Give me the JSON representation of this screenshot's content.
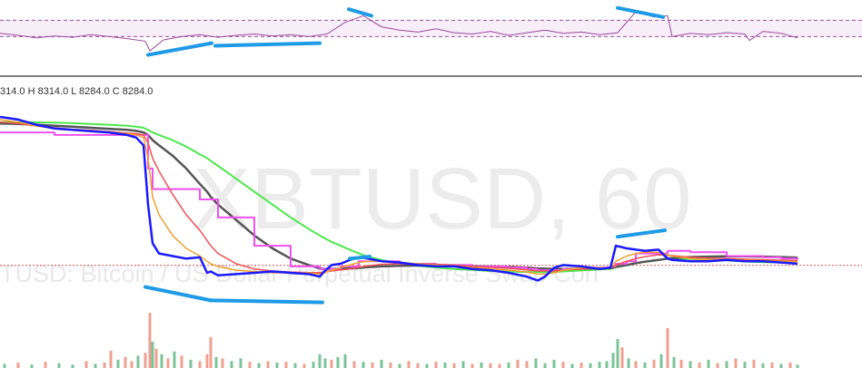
{
  "header": {
    "ohlc_text": "314.0 H 8314.0 L 8284.0 C 8284.0"
  },
  "watermark": {
    "symbol": "XBTUSD, 60",
    "description": "TUSD: Bitcoin / US Dollar Perpetual Inverse Swap Con"
  },
  "colors": {
    "price": "#1a1aff",
    "rsi": "#9c4a9c",
    "trendline": "#1e9ae6",
    "ma_fast": "#f0a030",
    "ma_red": "#f05050",
    "ma_pink": "#f050f0",
    "ma_dark": "#555555",
    "ma_green": "#4ce84c",
    "vol_up": "#7bc49a",
    "vol_down": "#f0a090",
    "separator": "#000000",
    "grid": "#e8e8e8"
  },
  "chart_data": [
    {
      "type": "line",
      "name": "rsi-panel",
      "x": [
        0,
        20,
        40,
        60,
        80,
        100,
        120,
        140,
        160,
        165,
        180,
        200,
        220,
        240,
        260,
        280,
        300,
        320,
        340,
        360,
        380,
        400,
        420,
        440,
        460,
        480,
        500,
        520,
        540,
        560,
        580,
        600,
        620,
        640,
        660,
        680,
        700,
        720,
        735,
        740,
        760,
        780,
        800,
        820,
        825,
        840,
        860,
        878
      ],
      "series": [
        {
          "key": "rsi",
          "values": [
            45,
            42,
            38,
            41,
            39,
            43,
            40,
            37,
            33,
            18,
            35,
            40,
            43,
            39,
            42,
            44,
            41,
            43,
            40,
            44,
            62,
            72,
            55,
            50,
            47,
            52,
            46,
            44,
            48,
            42,
            46,
            50,
            45,
            47,
            43,
            46,
            78,
            70,
            72,
            40,
            45,
            43,
            46,
            44,
            34,
            48,
            45,
            38
          ]
        }
      ],
      "bands": [
        65,
        40
      ],
      "ylim": [
        10,
        85
      ],
      "trendlines": [
        {
          "x": [
            163,
            233
          ],
          "y": [
            12,
            30
          ]
        },
        {
          "x": [
            237,
            352
          ],
          "y": [
            26,
            30
          ]
        },
        {
          "x": [
            384,
            409
          ],
          "y": [
            82,
            72
          ]
        },
        {
          "x": [
            680,
            730
          ],
          "y": [
            84,
            70
          ]
        }
      ]
    },
    {
      "type": "line",
      "name": "price-panel",
      "x": [
        0,
        20,
        40,
        60,
        80,
        100,
        120,
        140,
        150,
        158,
        163,
        168,
        175,
        190,
        205,
        220,
        228,
        232,
        240,
        260,
        280,
        300,
        320,
        340,
        352,
        357,
        365,
        375,
        385,
        395,
        405,
        420,
        440,
        460,
        480,
        500,
        520,
        540,
        560,
        580,
        592,
        600,
        610,
        620,
        640,
        660,
        672,
        678,
        690,
        700,
        710,
        725,
        735,
        740,
        760,
        780,
        800,
        820,
        840,
        860,
        878
      ],
      "series": [
        {
          "key": "price",
          "values": [
            8860,
            8850,
            8830,
            8815,
            8810,
            8805,
            8800,
            8790,
            8780,
            8750,
            8520,
            8370,
            8330,
            8320,
            8310,
            8315,
            8255,
            8260,
            8245,
            8250,
            8255,
            8260,
            8255,
            8250,
            8240,
            8260,
            8285,
            8290,
            8305,
            8315,
            8310,
            8300,
            8295,
            8285,
            8280,
            8280,
            8270,
            8265,
            8255,
            8240,
            8225,
            8240,
            8275,
            8285,
            8280,
            8270,
            8275,
            8360,
            8350,
            8345,
            8340,
            8345,
            8310,
            8305,
            8300,
            8300,
            8305,
            8300,
            8300,
            8295,
            8290
          ]
        },
        {
          "key": "ma_fast",
          "values": [
            8850,
            8840,
            8825,
            8815,
            8810,
            8805,
            8800,
            8795,
            8790,
            8780,
            8700,
            8550,
            8480,
            8400,
            8350,
            8320,
            8300,
            8290,
            8280,
            8265,
            8260,
            8255,
            8255,
            8255,
            8250,
            8255,
            8265,
            8275,
            8285,
            8295,
            8300,
            8300,
            8295,
            8290,
            8285,
            8280,
            8275,
            8270,
            8265,
            8258,
            8250,
            8250,
            8255,
            8265,
            8275,
            8275,
            8275,
            8300,
            8320,
            8330,
            8335,
            8335,
            8325,
            8320,
            8310,
            8305,
            8305,
            8303,
            8302,
            8300,
            8298
          ]
        },
        {
          "key": "ma_red",
          "values": [
            8840,
            8835,
            8825,
            8818,
            8812,
            8808,
            8803,
            8798,
            8795,
            8790,
            8760,
            8700,
            8650,
            8560,
            8480,
            8420,
            8380,
            8360,
            8330,
            8290,
            8270,
            8262,
            8258,
            8256,
            8256,
            8258,
            8262,
            8266,
            8270,
            8276,
            8282,
            8288,
            8290,
            8290,
            8288,
            8285,
            8280,
            8276,
            8272,
            8266,
            8262,
            8262,
            8262,
            8265,
            8270,
            8272,
            8274,
            8285,
            8300,
            8310,
            8318,
            8325,
            8322,
            8322,
            8315,
            8312,
            8310,
            8308,
            8306,
            8304,
            8302
          ]
        },
        {
          "key": "ma_pink",
          "values": [
            8800,
            8800,
            8800,
            8790,
            8790,
            8790,
            8790,
            8790,
            8790,
            8790,
            8660,
            8580,
            8580,
            8580,
            8580,
            8540,
            8540,
            8540,
            8470,
            8470,
            8360,
            8360,
            8280,
            8280,
            8270,
            8270,
            8270,
            8280,
            8280,
            8300,
            8300,
            8300,
            8290,
            8290,
            8285,
            8285,
            8280,
            8280,
            8275,
            8270,
            8265,
            8265,
            8265,
            8270,
            8275,
            8275,
            8280,
            8290,
            8300,
            8330,
            8330,
            8330,
            8340,
            8340,
            8335,
            8335,
            8320,
            8320,
            8315,
            8310,
            8305
          ]
        },
        {
          "key": "ma_dark",
          "values": [
            8835,
            8833,
            8830,
            8826,
            8822,
            8818,
            8814,
            8810,
            8806,
            8800,
            8790,
            8770,
            8750,
            8710,
            8660,
            8600,
            8570,
            8550,
            8520,
            8460,
            8400,
            8350,
            8310,
            8285,
            8272,
            8270,
            8270,
            8271,
            8272,
            8274,
            8277,
            8280,
            8282,
            8283,
            8283,
            8282,
            8281,
            8280,
            8278,
            8275,
            8272,
            8271,
            8270,
            8270,
            8271,
            8272,
            8273,
            8278,
            8285,
            8292,
            8298,
            8305,
            8310,
            8312,
            8316,
            8318,
            8319,
            8319,
            8318,
            8316,
            8314
          ]
        },
        {
          "key": "ma_green",
          "values": [
            8840,
            8840,
            8839,
            8838,
            8836,
            8833,
            8830,
            8826,
            8822,
            8818,
            8810,
            8800,
            8790,
            8770,
            8745,
            8715,
            8700,
            8690,
            8670,
            8620,
            8570,
            8520,
            8470,
            8425,
            8400,
            8390,
            8375,
            8360,
            8345,
            8330,
            8318,
            8305,
            8292,
            8282,
            8275,
            8270,
            8266,
            8262,
            8260,
            8258,
            8258,
            8258,
            8258,
            8260,
            8264,
            8268,
            8270,
            8276,
            8284,
            8292,
            8298,
            8305,
            8310,
            8310,
            8309,
            8306,
            8303,
            8299,
            8296,
            8295,
            8294
          ]
        }
      ],
      "ylim": [
        8100,
        8920
      ],
      "last_price_line": 8284,
      "trendlines": [
        {
          "x": [
            385,
            407
          ],
          "y": [
            8310,
            8318
          ]
        },
        {
          "x": [
            160,
            232
          ],
          "y": [
            8200,
            8148
          ]
        },
        {
          "x": [
            232,
            355
          ],
          "y": [
            8148,
            8140
          ]
        },
        {
          "x": [
            680,
            732
          ],
          "y": [
            8395,
            8420
          ]
        }
      ]
    },
    {
      "type": "bar",
      "name": "volume-panel",
      "x": [
        5,
        20,
        35,
        50,
        65,
        80,
        95,
        105,
        115,
        122,
        130,
        138,
        145,
        152,
        160,
        165,
        168,
        172,
        178,
        185,
        192,
        200,
        210,
        220,
        228,
        232,
        238,
        245,
        255,
        265,
        275,
        285,
        295,
        305,
        315,
        325,
        335,
        345,
        352,
        358,
        365,
        372,
        380,
        390,
        400,
        410,
        420,
        430,
        440,
        450,
        460,
        470,
        480,
        490,
        500,
        510,
        520,
        530,
        540,
        550,
        560,
        570,
        580,
        590,
        600,
        610,
        620,
        630,
        640,
        650,
        660,
        668,
        675,
        680,
        685,
        692,
        700,
        710,
        720,
        728,
        735,
        742,
        750,
        760,
        770,
        780,
        790,
        800,
        810,
        820,
        830,
        840,
        850,
        860,
        870,
        878
      ],
      "values": [
        6,
        8,
        5,
        9,
        7,
        5,
        10,
        6,
        8,
        25,
        12,
        16,
        10,
        18,
        22,
        80,
        38,
        28,
        20,
        14,
        24,
        18,
        12,
        10,
        20,
        45,
        16,
        14,
        10,
        14,
        9,
        7,
        10,
        8,
        9,
        7,
        6,
        9,
        20,
        14,
        12,
        16,
        20,
        10,
        9,
        8,
        12,
        8,
        6,
        10,
        7,
        6,
        9,
        8,
        7,
        10,
        6,
        8,
        7,
        6,
        8,
        12,
        10,
        14,
        7,
        12,
        9,
        6,
        8,
        7,
        9,
        10,
        22,
        42,
        30,
        14,
        10,
        8,
        12,
        20,
        58,
        16,
        12,
        10,
        8,
        12,
        7,
        10,
        14,
        9,
        12,
        7,
        8,
        6,
        8,
        5
      ],
      "up": [
        1,
        0,
        1,
        0,
        1,
        1,
        0,
        1,
        0,
        0,
        1,
        0,
        0,
        1,
        0,
        0,
        1,
        0,
        1,
        0,
        1,
        0,
        1,
        0,
        0,
        0,
        1,
        0,
        1,
        1,
        0,
        1,
        0,
        1,
        0,
        1,
        0,
        1,
        1,
        1,
        0,
        1,
        1,
        0,
        1,
        0,
        1,
        0,
        1,
        0,
        0,
        1,
        0,
        1,
        0,
        1,
        0,
        1,
        0,
        0,
        1,
        0,
        0,
        1,
        1,
        1,
        0,
        1,
        0,
        1,
        1,
        1,
        1,
        1,
        0,
        1,
        0,
        1,
        0,
        1,
        0,
        1,
        0,
        1,
        0,
        1,
        0,
        1,
        0,
        1,
        0,
        1,
        0,
        1,
        0,
        1
      ],
      "ylim": [
        0,
        100
      ]
    }
  ]
}
